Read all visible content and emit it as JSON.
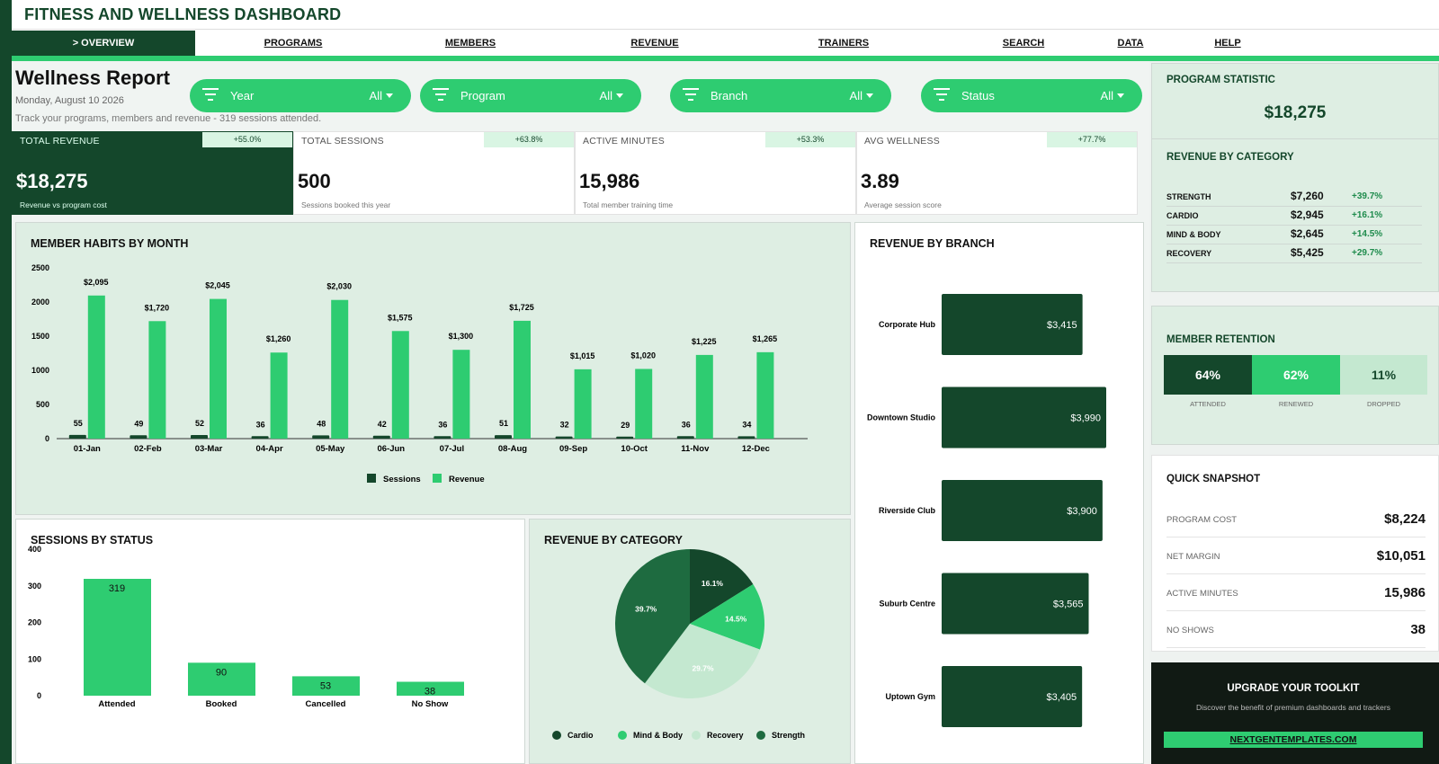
{
  "app": {
    "title": "FITNESS AND WELLNESS DASHBOARD"
  },
  "nav": [
    {
      "label": "> OVERVIEW",
      "active": true
    },
    {
      "label": "PROGRAMS"
    },
    {
      "label": "MEMBERS"
    },
    {
      "label": "REVENUE"
    },
    {
      "label": "TRAINERS"
    },
    {
      "label": "SEARCH"
    },
    {
      "label": "DATA"
    },
    {
      "label": "HELP"
    }
  ],
  "report": {
    "title": "Wellness Report",
    "date": "Monday, August 10 2026",
    "subtitle": "Track your programs, members and revenue  -  319 sessions attended."
  },
  "filters": [
    {
      "label": "Year",
      "value": "All"
    },
    {
      "label": "Program",
      "value": "All"
    },
    {
      "label": "Branch",
      "value": "All"
    },
    {
      "label": "Status",
      "value": "All"
    }
  ],
  "kpis": [
    {
      "label": "TOTAL REVENUE",
      "change": "+55.0%",
      "value": "$18,275",
      "desc": "Revenue vs program cost"
    },
    {
      "label": "TOTAL SESSIONS",
      "change": "+63.8%",
      "value": "500",
      "desc": "Sessions booked this year"
    },
    {
      "label": "ACTIVE MINUTES",
      "change": "+53.3%",
      "value": "15,986",
      "desc": "Total member training time"
    },
    {
      "label": "AVG WELLNESS",
      "change": "+77.7%",
      "value": "3.89",
      "desc": "Average session score"
    }
  ],
  "colors": {
    "dark": "#14472b",
    "green": "#2ecc71",
    "mid": "#1e6b40",
    "light": "#c4e8d0",
    "panel": "#deeee3"
  },
  "habits_card": {
    "title": "MEMBER HABITS BY MONTH"
  },
  "status_card": {
    "title": "SESSIONS BY STATUS"
  },
  "category_card": {
    "title": "REVENUE BY CATEGORY"
  },
  "branch_card": {
    "title": "REVENUE BY BRANCH"
  },
  "chart_data": [
    {
      "type": "bar",
      "title": "MEMBER HABITS BY MONTH",
      "categories": [
        "01-Jan",
        "02-Feb",
        "03-Mar",
        "04-Apr",
        "05-May",
        "06-Jun",
        "07-Jul",
        "08-Aug",
        "09-Sep",
        "10-Oct",
        "11-Nov",
        "12-Dec"
      ],
      "series": [
        {
          "name": "Sessions",
          "values": [
            55,
            49,
            52,
            36,
            48,
            42,
            36,
            51,
            32,
            29,
            36,
            34
          ],
          "labels": [
            "55",
            "49",
            "52",
            "36",
            "48",
            "42",
            "36",
            "51",
            "32",
            "29",
            "36",
            "34"
          ]
        },
        {
          "name": "Revenue",
          "values": [
            2095,
            1720,
            2045,
            1260,
            2030,
            1575,
            1300,
            1725,
            1015,
            1020,
            1225,
            1265
          ],
          "labels": [
            "$2,095",
            "$1,720",
            "$2,045",
            "$1,260",
            "$2,030",
            "$1,575",
            "$1,300",
            "$1,725",
            "$1,015",
            "$1,020",
            "$1,225",
            "$1,265"
          ]
        }
      ],
      "ylim": [
        0,
        2500
      ],
      "yticks": [
        "0",
        "500",
        "1000",
        "1500",
        "2000",
        "2500"
      ],
      "legend": "bottom"
    },
    {
      "type": "bar",
      "title": "SESSIONS BY STATUS",
      "categories": [
        "Attended",
        "Booked",
        "Cancelled",
        "No Show"
      ],
      "values": [
        319,
        90,
        53,
        38
      ],
      "labels": [
        "319",
        "90",
        "53",
        "38"
      ],
      "ylim": [
        0,
        400
      ],
      "yticks": [
        "0",
        "100",
        "200",
        "300",
        "400"
      ]
    },
    {
      "type": "pie",
      "title": "REVENUE BY CATEGORY",
      "categories": [
        "Cardio",
        "Mind & Body",
        "Recovery",
        "Strength"
      ],
      "values": [
        16.1,
        14.5,
        29.7,
        39.7
      ],
      "labels": [
        "16.1%",
        "14.5%",
        "29.7%",
        "39.7%"
      ],
      "legend": "bottom"
    },
    {
      "type": "bar",
      "orientation": "horizontal",
      "title": "REVENUE BY BRANCH",
      "categories": [
        "Corporate Hub",
        "Downtown Studio",
        "Riverside Club",
        "Suburb Centre",
        "Uptown Gym"
      ],
      "values": [
        3415,
        3990,
        3900,
        3565,
        3405
      ],
      "labels": [
        "$3,415",
        "$3,990",
        "$3,900",
        "$3,565",
        "$3,405"
      ]
    }
  ],
  "right_panel": {
    "program_stat": {
      "title": "PROGRAM STATISTIC",
      "value": "$18,275"
    },
    "revenue_by_category": {
      "title": "REVENUE BY CATEGORY",
      "rows": [
        {
          "name": "STRENGTH",
          "value": "$7,260",
          "change": "+39.7%"
        },
        {
          "name": "CARDIO",
          "value": "$2,945",
          "change": "+16.1%"
        },
        {
          "name": "MIND & BODY",
          "value": "$2,645",
          "change": "+14.5%"
        },
        {
          "name": "RECOVERY",
          "value": "$5,425",
          "change": "+29.7%"
        }
      ]
    },
    "retention": {
      "title": "MEMBER RETENTION",
      "items": [
        {
          "value": "64%",
          "label": "ATTENDED"
        },
        {
          "value": "62%",
          "label": "RENEWED"
        },
        {
          "value": "11%",
          "label": "DROPPED"
        }
      ]
    },
    "snapshot": {
      "title": "QUICK SNAPSHOT",
      "rows": [
        {
          "label": "PROGRAM COST",
          "value": "$8,224"
        },
        {
          "label": "NET MARGIN",
          "value": "$10,051"
        },
        {
          "label": "ACTIVE MINUTES",
          "value": "15,986"
        },
        {
          "label": "NO SHOWS",
          "value": "38"
        }
      ]
    },
    "promo": {
      "title": "UPGRADE YOUR TOOLKIT",
      "text": "Discover the benefit of premium dashboards and trackers",
      "link": "NEXTGENTEMPLATES.COM"
    }
  }
}
